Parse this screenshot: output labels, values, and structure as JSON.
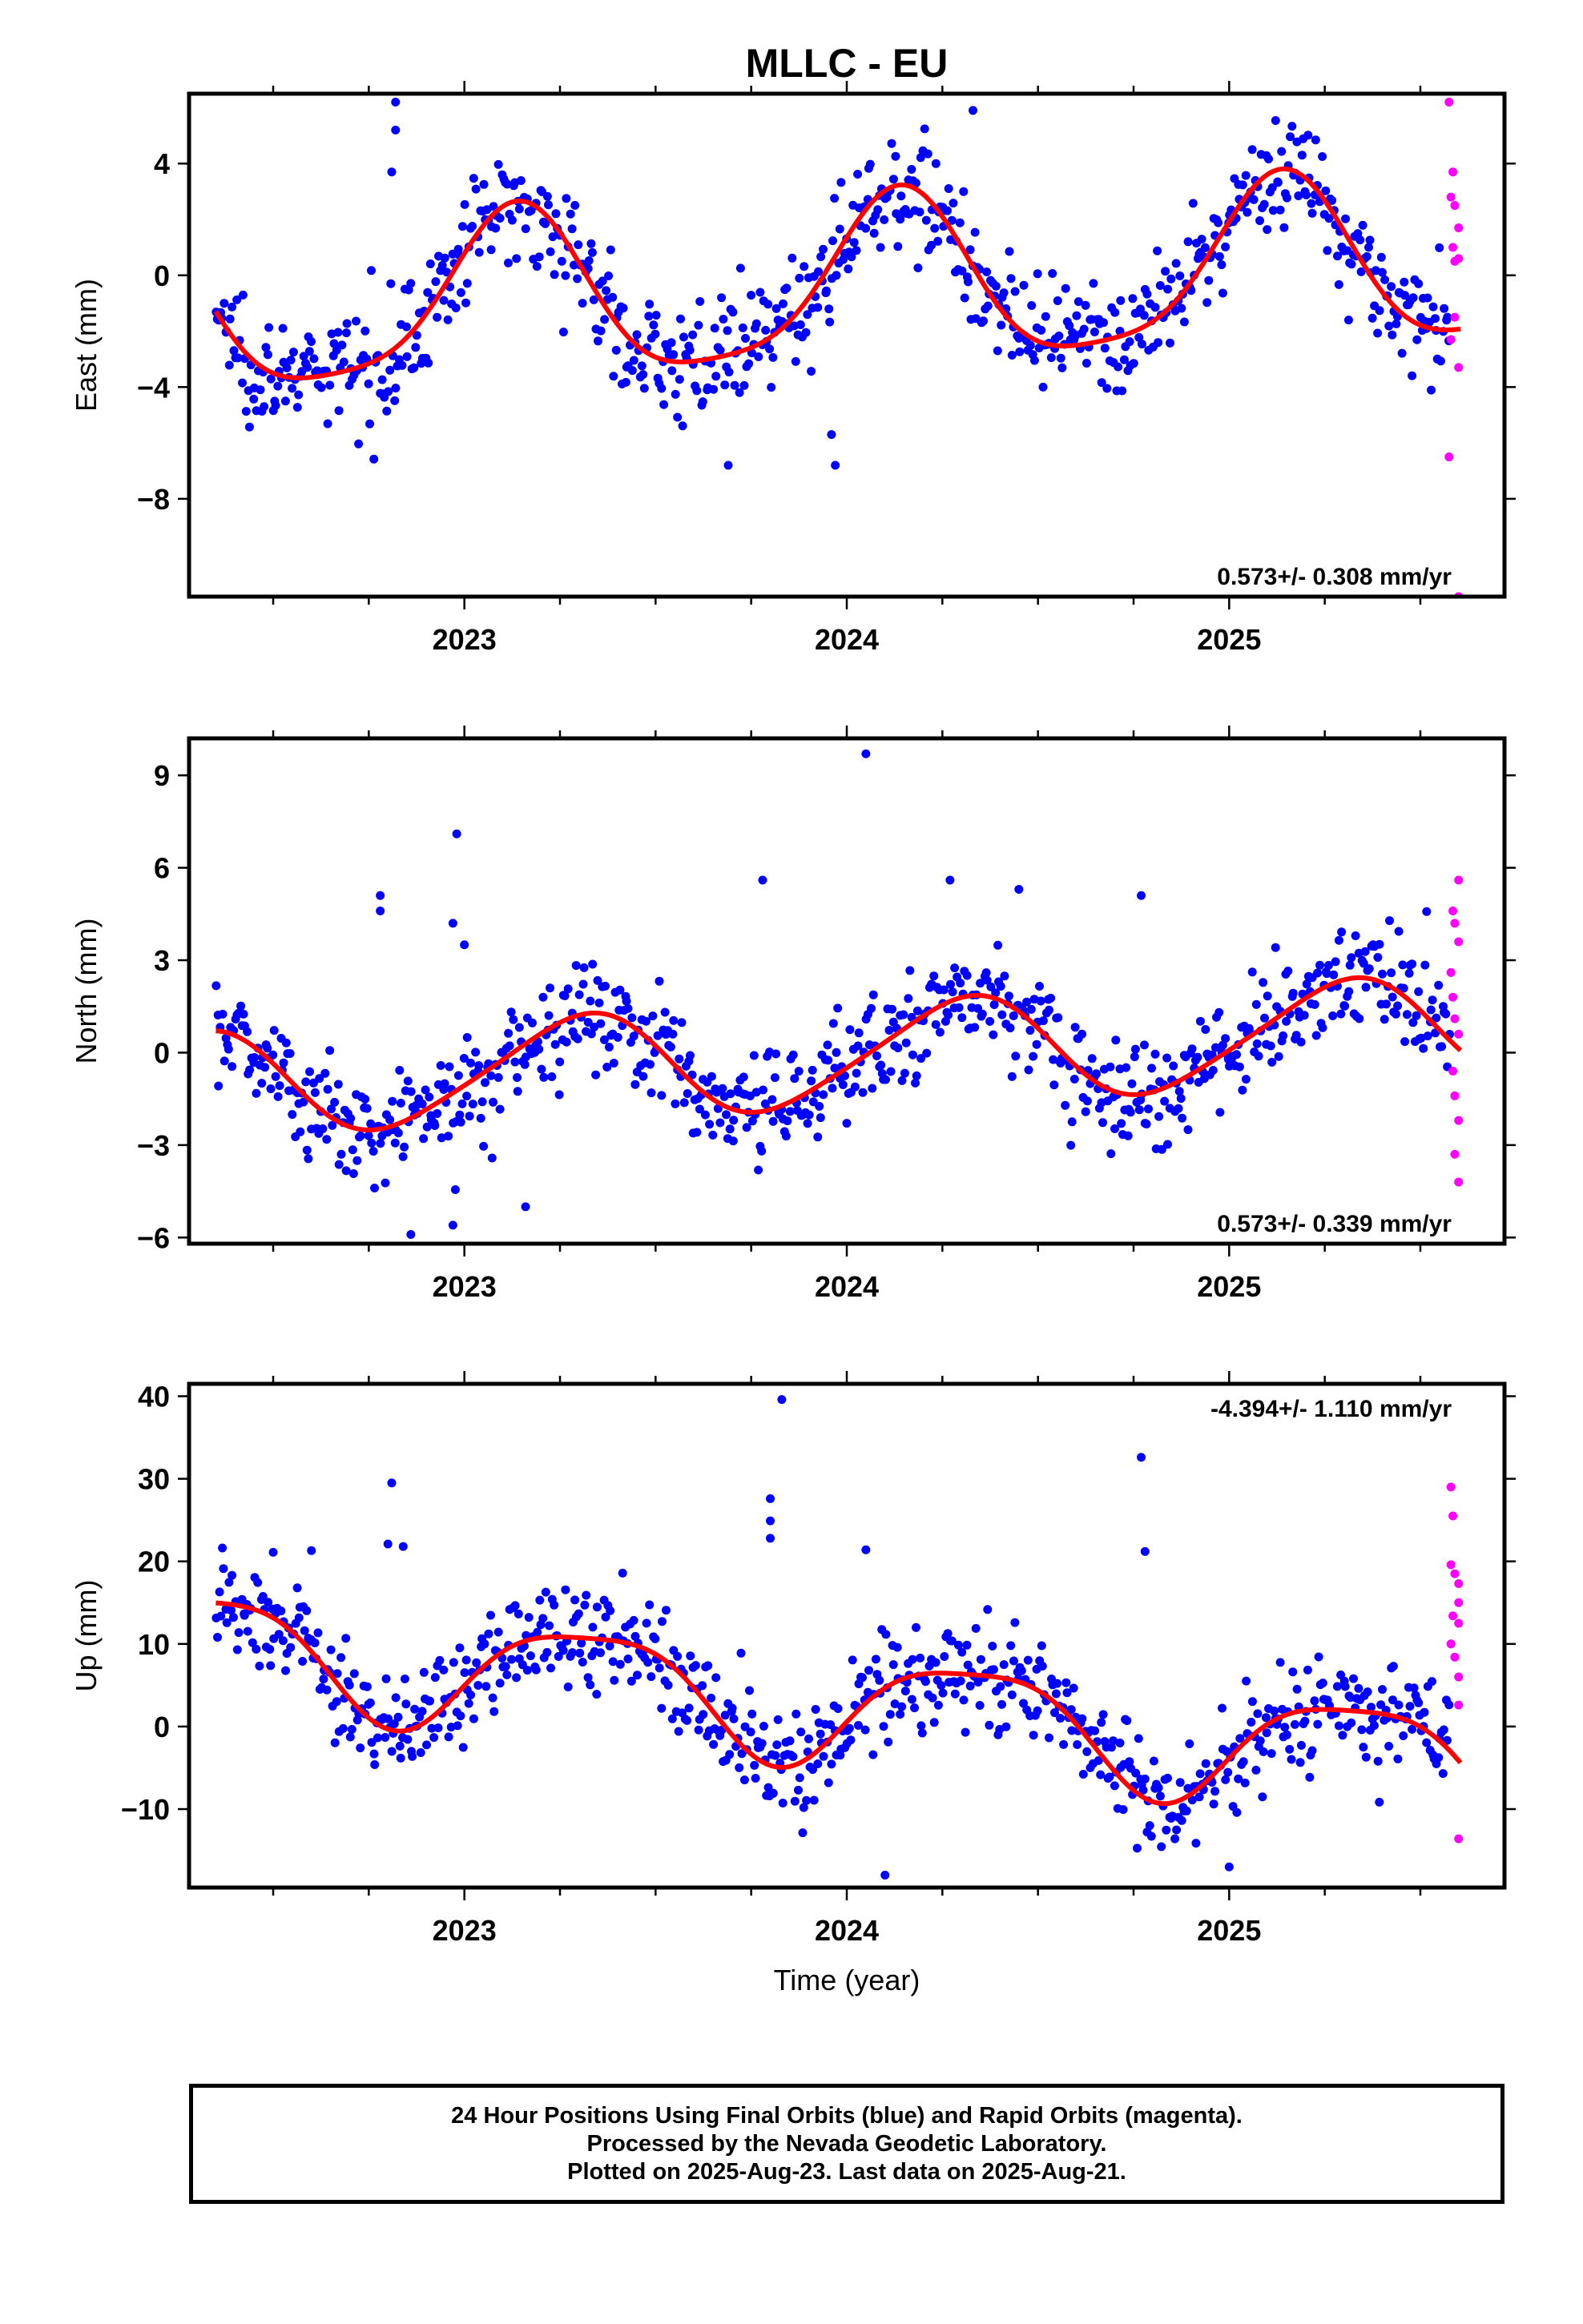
{
  "title": "MLLC - EU",
  "xlabel": "Time (year)",
  "footer": {
    "line1": "24 Hour Positions Using Final Orbits (blue) and Rapid Orbits (magenta).",
    "line2": "Processed by the Nevada Geodetic Laboratory.",
    "line3": "Plotted on 2025-Aug-23. Last data on 2025-Aug-21."
  },
  "colors": {
    "final": "#0000ff",
    "rapid": "#ff00ff",
    "fit": "#ff0000"
  },
  "chart_data": [
    {
      "type": "scatter",
      "name": "east-panel",
      "ylabel": "East (mm)",
      "rate": "0.573+/- 0.308 mm/yr",
      "xlim": [
        2022.28,
        2025.72
      ],
      "ylim": [
        -11.5,
        6.5
      ],
      "xticks": [
        2023,
        2024,
        2025
      ],
      "yticks": [
        4,
        0,
        -4,
        -8
      ],
      "ytick_labels": [
        "4",
        "0",
        "−4",
        "−8"
      ],
      "fit": {
        "offset": -0.5,
        "rate": 0.573,
        "annual": [
          2.0,
          2.2
        ],
        "semiannual": [
          -0.2,
          0.6
        ]
      },
      "final_points": {
        "from": 2022.35,
        "to": 2025.58,
        "noise": 1.0,
        "count": 760
      },
      "outliers": [
        [
          2022.82,
          6.2
        ],
        [
          2022.82,
          5.2
        ],
        [
          2022.81,
          3.7
        ],
        [
          2023.69,
          -6.8
        ],
        [
          2023.97,
          -6.8
        ],
        [
          2023.96,
          -5.7
        ],
        [
          2024.33,
          5.9
        ]
      ],
      "rapid_points": [
        [
          2025.575,
          6.2
        ],
        [
          2025.585,
          3.7
        ],
        [
          2025.58,
          2.8
        ],
        [
          2025.59,
          2.5
        ],
        [
          2025.6,
          1.7
        ],
        [
          2025.585,
          1.0
        ],
        [
          2025.59,
          0.5
        ],
        [
          2025.6,
          0.6
        ],
        [
          2025.59,
          -1.5
        ],
        [
          2025.58,
          -2.3
        ],
        [
          2025.6,
          -3.3
        ],
        [
          2025.575,
          -6.5
        ],
        [
          2025.6,
          -11.5
        ]
      ]
    },
    {
      "type": "scatter",
      "name": "north-panel",
      "ylabel": "North (mm)",
      "rate": "0.573+/- 0.339 mm/yr",
      "xlim": [
        2022.28,
        2025.72
      ],
      "ylim": [
        -6.2,
        10.2
      ],
      "xticks": [
        2023,
        2024,
        2025
      ],
      "yticks": [
        9,
        6,
        3,
        0,
        -3,
        -6
      ],
      "ytick_labels": [
        "9",
        "6",
        "3",
        "0",
        "−3",
        "−6"
      ],
      "fit": {
        "offset": -0.15,
        "rate": 0.573,
        "annual": [
          -0.5,
          1.6
        ],
        "semiannual": [
          0.1,
          -0.2
        ]
      },
      "final_points": {
        "from": 2022.35,
        "to": 2025.58,
        "noise": 0.9,
        "count": 760
      },
      "outliers": [
        [
          2022.98,
          7.1
        ],
        [
          2022.78,
          5.1
        ],
        [
          2022.78,
          4.6
        ],
        [
          2022.97,
          4.2
        ],
        [
          2023.0,
          3.5
        ],
        [
          2024.05,
          9.7
        ],
        [
          2023.78,
          5.6
        ],
        [
          2024.27,
          5.6
        ],
        [
          2024.45,
          5.3
        ],
        [
          2024.77,
          5.1
        ],
        [
          2022.86,
          -5.9
        ],
        [
          2022.97,
          -5.6
        ],
        [
          2023.16,
          -5.0
        ]
      ],
      "rapid_points": [
        [
          2025.6,
          5.6
        ],
        [
          2025.585,
          4.6
        ],
        [
          2025.59,
          4.2
        ],
        [
          2025.6,
          3.6
        ],
        [
          2025.58,
          2.6
        ],
        [
          2025.585,
          1.8
        ],
        [
          2025.59,
          1.1
        ],
        [
          2025.6,
          0.6
        ],
        [
          2025.585,
          -0.6
        ],
        [
          2025.59,
          -1.4
        ],
        [
          2025.6,
          -2.2
        ],
        [
          2025.59,
          -3.3
        ],
        [
          2025.6,
          -4.2
        ]
      ]
    },
    {
      "type": "scatter",
      "name": "up-panel",
      "ylabel": "Up (mm)",
      "rate": "-4.394+/- 1.110 mm/yr",
      "xlim": [
        2022.28,
        2025.72
      ],
      "ylim": [
        -19.5,
        41.5
      ],
      "xticks": [
        2023,
        2024,
        2025
      ],
      "yticks": [
        40,
        30,
        20,
        10,
        0,
        -10
      ],
      "ytick_labels": [
        "40",
        "30",
        "20",
        "10",
        "0",
        "−10"
      ],
      "fit": {
        "offset": 3.0,
        "rate": -4.394,
        "annual": [
          -3.0,
          6.0
        ],
        "semiannual": [
          1.0,
          1.2
        ]
      },
      "final_points": {
        "from": 2022.35,
        "to": 2025.58,
        "noise": 3.2,
        "count": 760
      },
      "outliers": [
        [
          2023.83,
          39.6
        ],
        [
          2024.77,
          32.6
        ],
        [
          2022.81,
          29.5
        ],
        [
          2023.8,
          27.6
        ],
        [
          2023.8,
          24.9
        ],
        [
          2023.8,
          22.8
        ],
        [
          2022.8,
          22.1
        ],
        [
          2022.84,
          21.8
        ],
        [
          2024.05,
          21.4
        ],
        [
          2024.78,
          21.2
        ],
        [
          2022.6,
          21.3
        ],
        [
          2022.5,
          21.1
        ],
        [
          2024.1,
          -18.0
        ],
        [
          2025.0,
          -17.0
        ]
      ],
      "rapid_points": [
        [
          2025.58,
          29.0
        ],
        [
          2025.585,
          25.5
        ],
        [
          2025.58,
          19.6
        ],
        [
          2025.59,
          18.5
        ],
        [
          2025.6,
          17.3
        ],
        [
          2025.6,
          15.0
        ],
        [
          2025.585,
          13.4
        ],
        [
          2025.6,
          12.5
        ],
        [
          2025.58,
          10.0
        ],
        [
          2025.59,
          8.4
        ],
        [
          2025.6,
          6.0
        ],
        [
          2025.6,
          2.6
        ],
        [
          2025.6,
          -13.6
        ]
      ]
    }
  ]
}
